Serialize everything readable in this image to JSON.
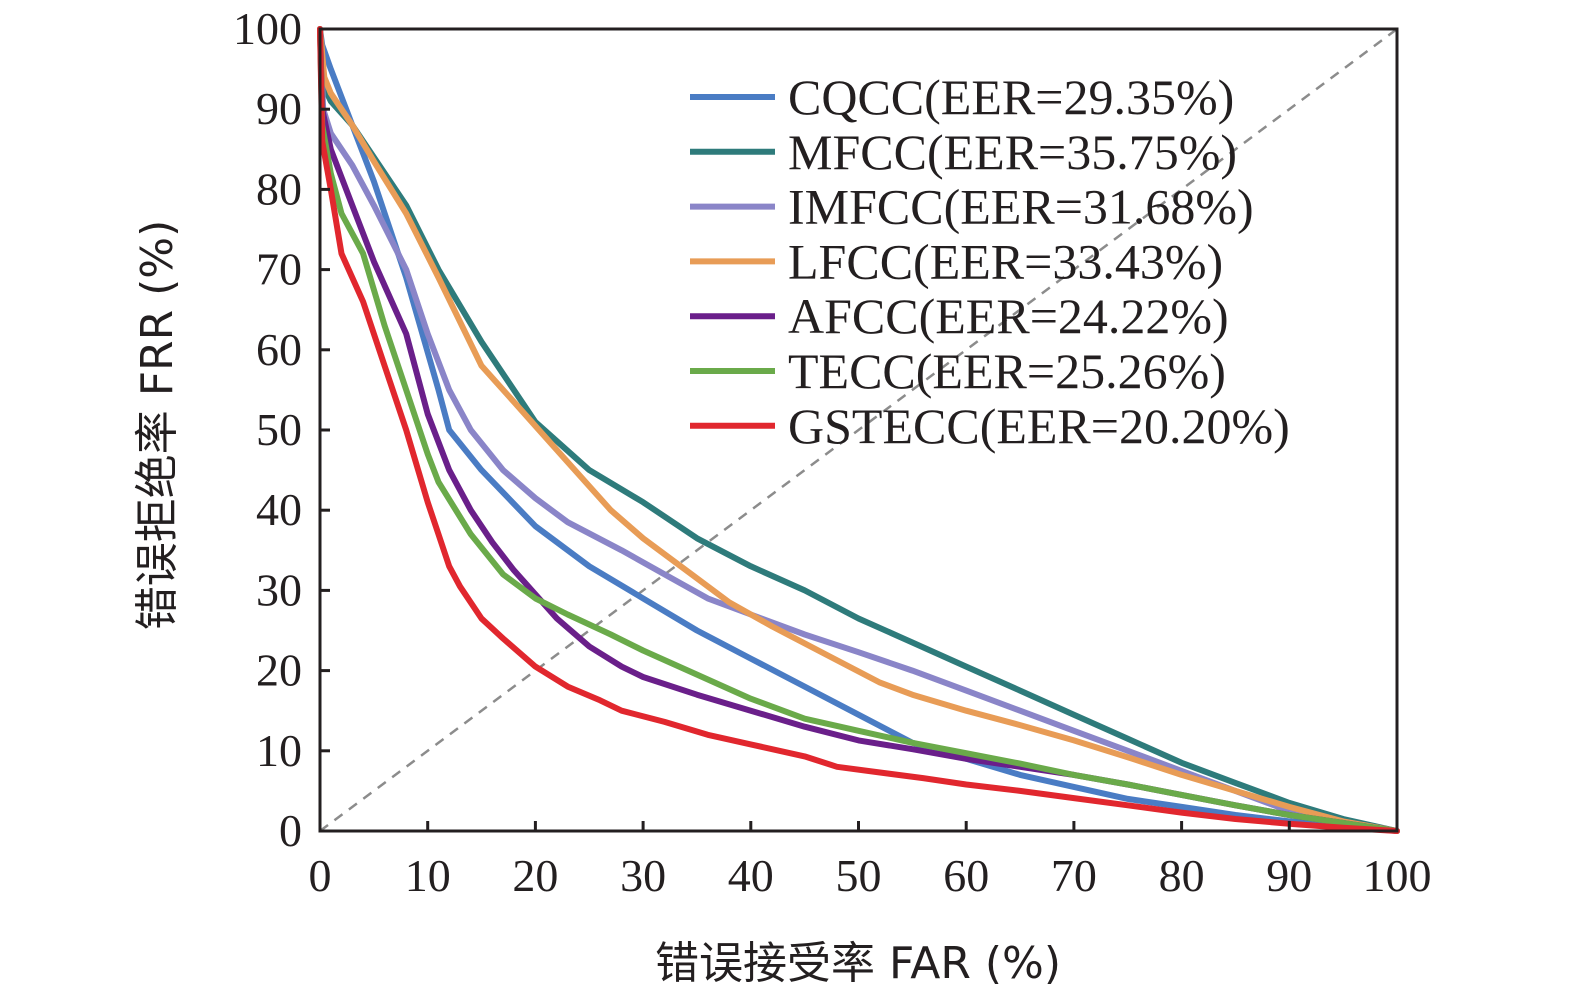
{
  "chart_data": {
    "type": "line",
    "xlabel": "错误接受率 FAR (%)",
    "ylabel": "错误拒绝率 FRR (%)",
    "xlim": [
      0,
      100
    ],
    "ylim": [
      0,
      100
    ],
    "xticks": [
      "0",
      "10",
      "20",
      "30",
      "40",
      "50",
      "60",
      "70",
      "80",
      "90",
      "100"
    ],
    "yticks": [
      "0",
      "10",
      "20",
      "30",
      "40",
      "50",
      "60",
      "70",
      "80",
      "90",
      "100"
    ],
    "grid": false,
    "legend_position": "top-right",
    "reference_line": {
      "style": "dashed",
      "color": "#8c8c8c",
      "from": [
        0,
        0
      ],
      "to": [
        100,
        100
      ]
    },
    "series": [
      {
        "name": "CQCC(EER=29.35%)",
        "color": "#4a7cc4",
        "points": [
          [
            0,
            100
          ],
          [
            0.2,
            98
          ],
          [
            1,
            95
          ],
          [
            3,
            88
          ],
          [
            5,
            81
          ],
          [
            8,
            69
          ],
          [
            11,
            55
          ],
          [
            12,
            50
          ],
          [
            15,
            45
          ],
          [
            20,
            38
          ],
          [
            25,
            33
          ],
          [
            30,
            29
          ],
          [
            35,
            25
          ],
          [
            40,
            21.5
          ],
          [
            45,
            18
          ],
          [
            50,
            14.5
          ],
          [
            55,
            11
          ],
          [
            60,
            9
          ],
          [
            65,
            7
          ],
          [
            70,
            5.5
          ],
          [
            75,
            4
          ],
          [
            80,
            3
          ],
          [
            85,
            2
          ],
          [
            90,
            1.2
          ],
          [
            95,
            0.6
          ],
          [
            100,
            0
          ]
        ]
      },
      {
        "name": "MFCC(EER=35.75%)",
        "color": "#2e7b7b",
        "points": [
          [
            0,
            100
          ],
          [
            0.3,
            93
          ],
          [
            1,
            91
          ],
          [
            3,
            88
          ],
          [
            5,
            84
          ],
          [
            8,
            78
          ],
          [
            11,
            70
          ],
          [
            15,
            61
          ],
          [
            20,
            51
          ],
          [
            25,
            45
          ],
          [
            30,
            41
          ],
          [
            35,
            36.5
          ],
          [
            40,
            33
          ],
          [
            45,
            30
          ],
          [
            50,
            26.5
          ],
          [
            55,
            23.5
          ],
          [
            60,
            20.5
          ],
          [
            65,
            17.5
          ],
          [
            70,
            14.5
          ],
          [
            75,
            11.5
          ],
          [
            80,
            8.5
          ],
          [
            85,
            6
          ],
          [
            90,
            3.5
          ],
          [
            95,
            1.5
          ],
          [
            100,
            0
          ]
        ]
      },
      {
        "name": "IMFCC(EER=31.68%)",
        "color": "#8a85c8",
        "points": [
          [
            0,
            100
          ],
          [
            0.3,
            90
          ],
          [
            1,
            87
          ],
          [
            3,
            83
          ],
          [
            5,
            78
          ],
          [
            8,
            70
          ],
          [
            10,
            62
          ],
          [
            12,
            55
          ],
          [
            14,
            50
          ],
          [
            17,
            45
          ],
          [
            20,
            41.5
          ],
          [
            23,
            38.5
          ],
          [
            28,
            35
          ],
          [
            32,
            32
          ],
          [
            36,
            29
          ],
          [
            40,
            27
          ],
          [
            45,
            24.5
          ],
          [
            50,
            22.3
          ],
          [
            55,
            20
          ],
          [
            60,
            17.5
          ],
          [
            65,
            15
          ],
          [
            70,
            12.5
          ],
          [
            75,
            10
          ],
          [
            80,
            7.5
          ],
          [
            85,
            5
          ],
          [
            90,
            2.5
          ],
          [
            95,
            1
          ],
          [
            100,
            0
          ]
        ]
      },
      {
        "name": "LFCC(EER=33.43%)",
        "color": "#e89c56",
        "points": [
          [
            0,
            100
          ],
          [
            0.4,
            94
          ],
          [
            1,
            92
          ],
          [
            3,
            88
          ],
          [
            5,
            83.5
          ],
          [
            8,
            77
          ],
          [
            11,
            69
          ],
          [
            15,
            58
          ],
          [
            18,
            53.5
          ],
          [
            20,
            50.5
          ],
          [
            23,
            46
          ],
          [
            27,
            40
          ],
          [
            30,
            36.5
          ],
          [
            34,
            32.5
          ],
          [
            38,
            28.5
          ],
          [
            42,
            25.5
          ],
          [
            47,
            22
          ],
          [
            52,
            18.5
          ],
          [
            55,
            17
          ],
          [
            60,
            15
          ],
          [
            65,
            13.2
          ],
          [
            70,
            11.3
          ],
          [
            75,
            9.2
          ],
          [
            80,
            7
          ],
          [
            85,
            5
          ],
          [
            90,
            3
          ],
          [
            95,
            1.2
          ],
          [
            100,
            0
          ]
        ]
      },
      {
        "name": "AFCC(EER=24.22%)",
        "color": "#6a1f8a",
        "points": [
          [
            0,
            100
          ],
          [
            0.2,
            90
          ],
          [
            1,
            85
          ],
          [
            3,
            78
          ],
          [
            5,
            71
          ],
          [
            8,
            62
          ],
          [
            10,
            52
          ],
          [
            12,
            45
          ],
          [
            14,
            40
          ],
          [
            16,
            36
          ],
          [
            18,
            32.5
          ],
          [
            20,
            29.5
          ],
          [
            22,
            26.5
          ],
          [
            25,
            23
          ],
          [
            28,
            20.5
          ],
          [
            30,
            19.2
          ],
          [
            35,
            17
          ],
          [
            40,
            15
          ],
          [
            45,
            13
          ],
          [
            50,
            11.3
          ],
          [
            55,
            10.2
          ],
          [
            60,
            9
          ],
          [
            65,
            8
          ],
          [
            70,
            7
          ],
          [
            75,
            5.8
          ],
          [
            80,
            4.5
          ],
          [
            85,
            3.2
          ],
          [
            90,
            2
          ],
          [
            95,
            1
          ],
          [
            100,
            0
          ]
        ]
      },
      {
        "name": "TECC(EER=25.26%)",
        "color": "#6aaa4a",
        "points": [
          [
            0,
            100
          ],
          [
            0.2,
            88
          ],
          [
            1,
            82
          ],
          [
            2,
            77
          ],
          [
            4,
            72
          ],
          [
            6,
            63
          ],
          [
            8,
            55
          ],
          [
            10,
            47
          ],
          [
            11,
            43.5
          ],
          [
            14,
            37
          ],
          [
            17,
            32
          ],
          [
            20,
            29
          ],
          [
            23,
            27
          ],
          [
            27,
            24.5
          ],
          [
            30,
            22.5
          ],
          [
            35,
            19.5
          ],
          [
            40,
            16.5
          ],
          [
            45,
            14
          ],
          [
            50,
            12.5
          ],
          [
            55,
            11
          ],
          [
            60,
            9.7
          ],
          [
            65,
            8.4
          ],
          [
            70,
            7
          ],
          [
            75,
            5.8
          ],
          [
            80,
            4.5
          ],
          [
            85,
            3.2
          ],
          [
            90,
            2
          ],
          [
            95,
            1
          ],
          [
            100,
            0
          ]
        ]
      },
      {
        "name": "GSTECC(EER=20.20%)",
        "color": "#e1272e",
        "points": [
          [
            0,
            100
          ],
          [
            0.2,
            86
          ],
          [
            1,
            80
          ],
          [
            2,
            72
          ],
          [
            4,
            66
          ],
          [
            6,
            58
          ],
          [
            8,
            50
          ],
          [
            10,
            41
          ],
          [
            11,
            37
          ],
          [
            12,
            33
          ],
          [
            13,
            30.5
          ],
          [
            15,
            26.5
          ],
          [
            17,
            24
          ],
          [
            20,
            20.5
          ],
          [
            23,
            18
          ],
          [
            26,
            16.3
          ],
          [
            28,
            15
          ],
          [
            32,
            13.6
          ],
          [
            36,
            12
          ],
          [
            40,
            10.8
          ],
          [
            45,
            9.3
          ],
          [
            48,
            8
          ],
          [
            52,
            7.3
          ],
          [
            56,
            6.6
          ],
          [
            60,
            5.8
          ],
          [
            65,
            5
          ],
          [
            70,
            4.1
          ],
          [
            75,
            3.2
          ],
          [
            80,
            2.3
          ],
          [
            85,
            1.5
          ],
          [
            90,
            0.9
          ],
          [
            95,
            0.4
          ],
          [
            100,
            0
          ]
        ]
      }
    ]
  }
}
